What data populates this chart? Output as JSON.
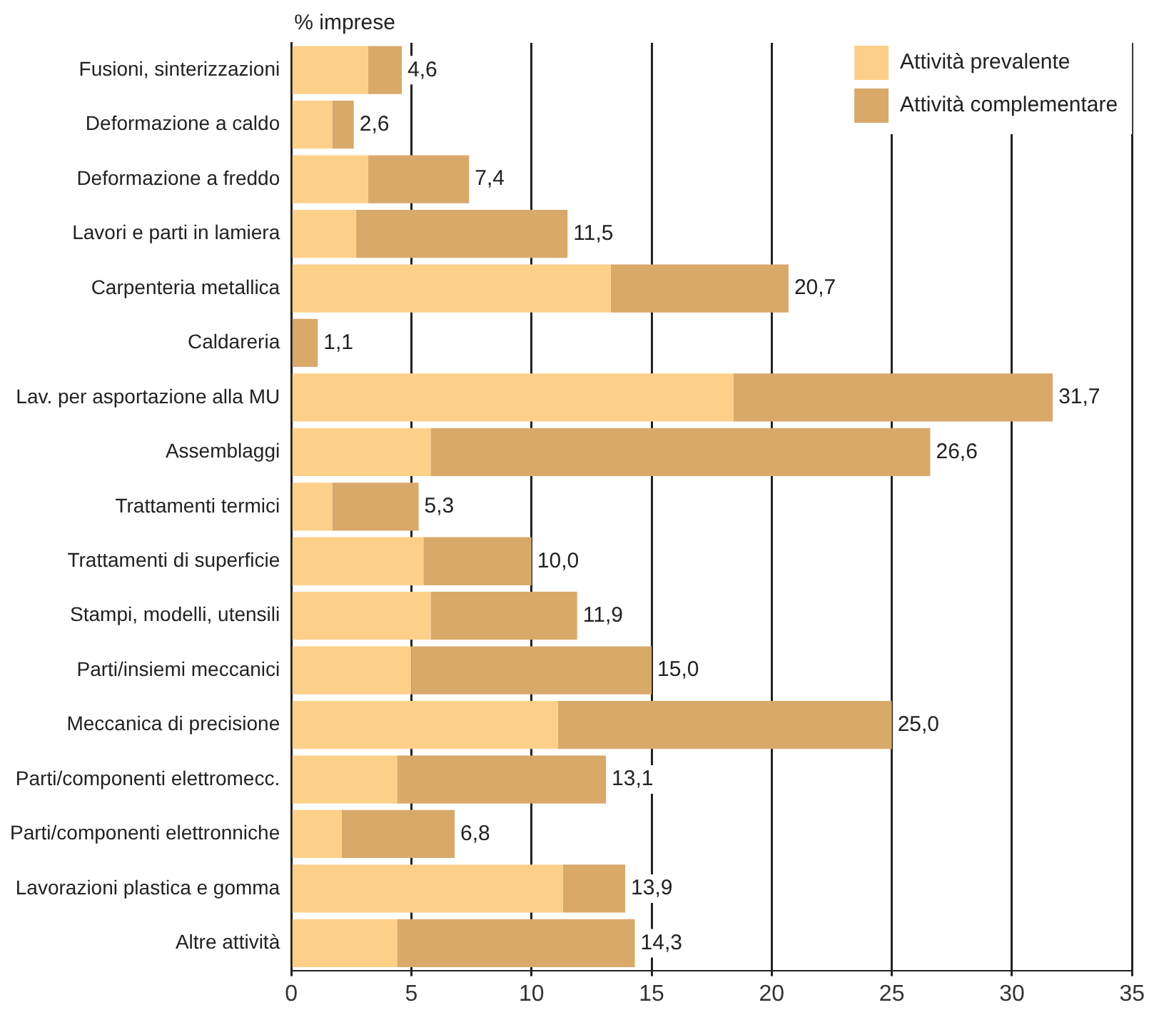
{
  "chart_data": {
    "type": "bar",
    "orientation": "horizontal",
    "stacked": true,
    "xlabel": "% imprese",
    "categories": [
      "Fusioni, sinterizzazioni",
      "Deformazione a caldo",
      "Deformazione a freddo",
      "Lavori e parti in lamiera",
      "Carpenteria metallica",
      "Caldareria",
      "Lav. per asportazione alla MU",
      "Assemblaggi",
      "Trattamenti termici",
      "Trattamenti di superficie",
      "Stampi, modelli, utensili",
      "Parti/insiemi meccanici",
      "Meccanica di precisione",
      "Parti/componenti elettromecc.",
      "Parti/componenti elettronniche",
      "Lavorazioni plastica e gomma",
      "Altre attività"
    ],
    "series": [
      {
        "name": "Attività prevalente",
        "color": "#fdd08a",
        "values": [
          3.2,
          1.7,
          3.2,
          2.7,
          13.3,
          0,
          18.4,
          5.8,
          1.7,
          5.5,
          5.8,
          5.0,
          11.1,
          4.4,
          2.1,
          11.3,
          4.4
        ]
      },
      {
        "name": "Attività complementare",
        "color": "#d9a96a",
        "values": [
          1.4,
          0.9,
          4.2,
          8.8,
          7.4,
          1.1,
          13.3,
          20.8,
          3.6,
          4.5,
          6.1,
          10.0,
          13.9,
          8.7,
          4.7,
          2.6,
          9.9
        ]
      }
    ],
    "totals": [
      "4,6",
      "2,6",
      "7,4",
      "11,5",
      "20,7",
      "1,1",
      "31,7",
      "26,6",
      "5,3",
      "10,0",
      "11,9",
      "15,0",
      "25,0",
      "13,1",
      "6,8",
      "13,9",
      "14,3"
    ],
    "xlim": [
      0,
      35
    ],
    "xticks": [
      0,
      5,
      10,
      15,
      20,
      25,
      30,
      35
    ],
    "grid": "x",
    "legend": "top right"
  }
}
